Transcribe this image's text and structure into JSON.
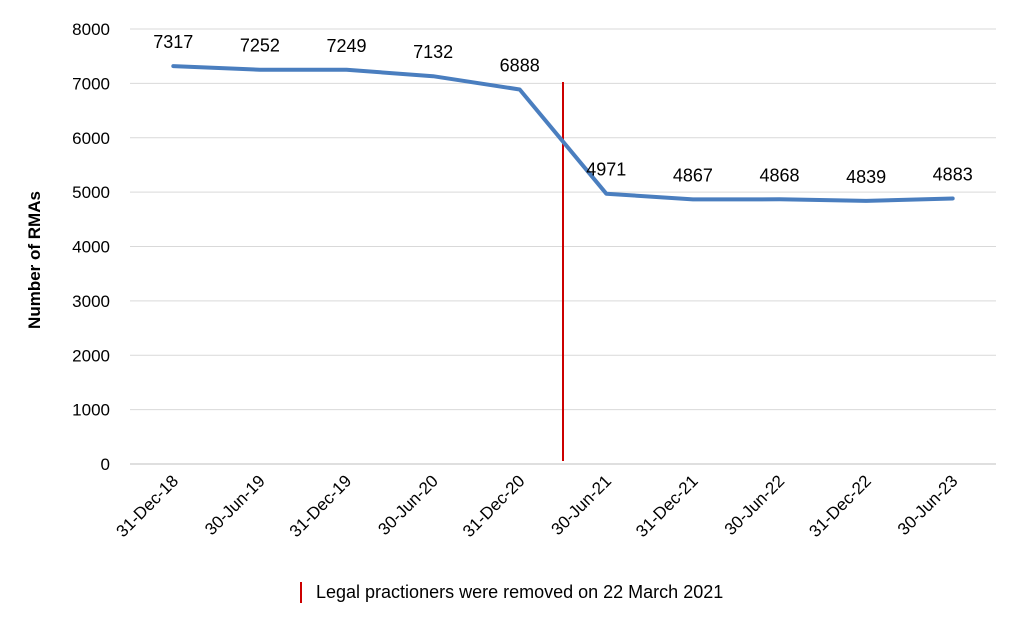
{
  "chart_data": {
    "type": "line",
    "categories": [
      "31-Dec-18",
      "30-Jun-19",
      "31-Dec-19",
      "30-Jun-20",
      "31-Dec-20",
      "30-Jun-21",
      "31-Dec-21",
      "30-Jun-22",
      "31-Dec-22",
      "30-Jun-23"
    ],
    "series": [
      {
        "values": [
          7317,
          7252,
          7249,
          7132,
          6888,
          4971,
          4867,
          4868,
          4839,
          4883
        ]
      }
    ],
    "ylabel": "Number of RMAs",
    "ylim": [
      0,
      8000
    ],
    "yticks": [
      0,
      1000,
      2000,
      3000,
      4000,
      5000,
      6000,
      7000,
      8000
    ],
    "grid": true,
    "annotation": {
      "label": "Legal practioners were removed on 22 March 2021",
      "position_between": [
        "31-Dec-20",
        "30-Jun-21"
      ]
    },
    "colors": {
      "line": "#4a7ebf",
      "marker_line": "#cc0000",
      "grid": "#d9d9d9"
    }
  }
}
